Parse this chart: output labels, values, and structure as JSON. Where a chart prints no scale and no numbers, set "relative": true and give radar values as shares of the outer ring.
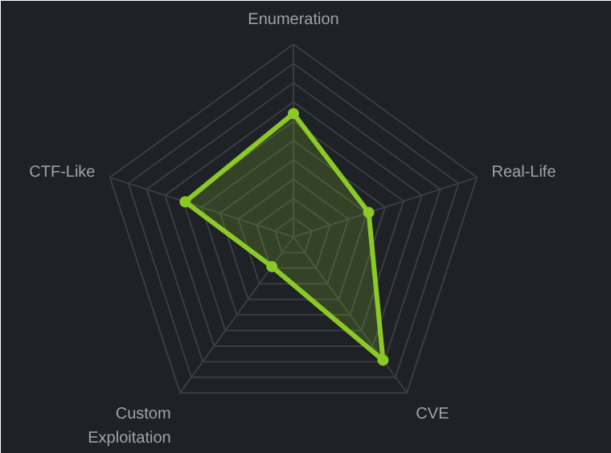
{
  "chart_data": {
    "type": "radar",
    "relative": true,
    "categories": [
      "Enumeration",
      "Real-Life",
      "CVE",
      "Custom Exploitation",
      "CTF-Like"
    ],
    "series": [
      {
        "color": "#8ac926",
        "values": [
          0.64,
          0.41,
          0.79,
          0.19,
          0.59
        ]
      }
    ],
    "marker": "circle",
    "grid": true
  }
}
